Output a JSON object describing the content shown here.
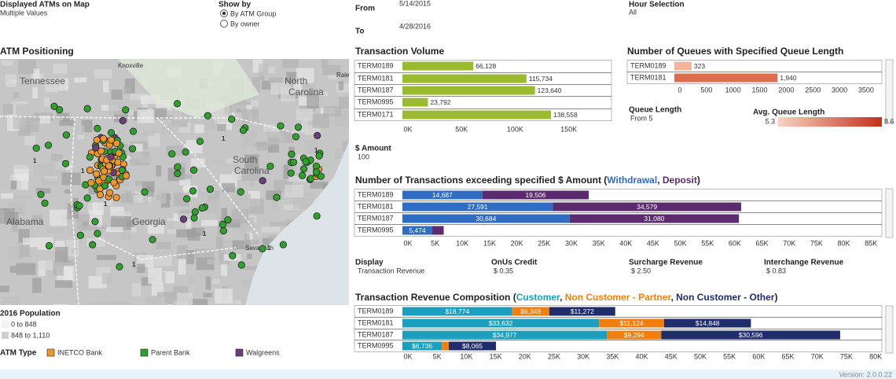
{
  "filters": {
    "displayed_label": "Displayed ATMs on Map",
    "displayed_value": "Multiple Values",
    "show_by_label": "Show by",
    "show_by_options": [
      "By ATM Group",
      "By owner"
    ],
    "from_label": "From",
    "from_value": "5/14/2015",
    "to_label": "To",
    "to_value": "4/28/2016",
    "hour_label": "Hour Selection",
    "hour_value": "All"
  },
  "map": {
    "title": "ATM Positioning",
    "places": [
      "Knoxville",
      "Tennessee",
      "Raleigh",
      "North",
      "Carolina",
      "South",
      "Carolina",
      "Alabama",
      "Georgia",
      "Savannah"
    ],
    "cluster_counts": [
      1,
      1,
      1,
      1,
      1,
      1,
      1,
      1
    ],
    "legend_title": "2016 Population",
    "population_ranges": [
      "0 to 848",
      "848 to 1,110"
    ],
    "atm_type_title": "ATM Type",
    "atm_types": [
      {
        "name": "INETCO Bank",
        "color": "#f0962a"
      },
      {
        "name": "Parent Bank",
        "color": "#2ea02c"
      },
      {
        "name": "Walgreens",
        "color": "#6b3f7a"
      }
    ]
  },
  "amount_filter": {
    "label": "$ Amount",
    "value": "100"
  },
  "queue_filter": {
    "label": "Queue Length",
    "value": "From 5"
  },
  "avg_queue": {
    "label": "Avg. Queue Length",
    "min": 5.3,
    "max": 8.6
  },
  "display": {
    "label": "Display",
    "value": "Transaction Revenue",
    "items": [
      {
        "label": "OnUs Credit",
        "value": "$ 0.35"
      },
      {
        "label": "Surcharge Revenue",
        "value": "$ 2.50"
      },
      {
        "label": "Interchange Revenue",
        "value": "$ 0.83"
      }
    ]
  },
  "version": "Version: 2.0.0.22",
  "chart_data": [
    {
      "type": "bar",
      "orientation": "horizontal",
      "title": "Transaction Volume",
      "categories": [
        "TERM0189",
        "TERM0181",
        "TERM0187",
        "TERM0995",
        "TERM0171"
      ],
      "values": [
        66128,
        115734,
        123640,
        23792,
        138558
      ],
      "value_labels": [
        "66,128",
        "115,734",
        "123,640",
        "23,792",
        "138,558"
      ],
      "color": "#9bbb2f",
      "xlim": [
        0,
        195000
      ],
      "xticks": [
        {
          "value": 0,
          "label": "0K"
        },
        {
          "value": 50000,
          "label": "50K"
        },
        {
          "value": 100000,
          "label": "100K"
        },
        {
          "value": 150000,
          "label": "150K"
        }
      ]
    },
    {
      "type": "bar",
      "orientation": "horizontal",
      "title": "Number of Queues with Specified Queue Length",
      "categories": [
        "TERM0189",
        "TERM0181"
      ],
      "values": [
        323,
        1940
      ],
      "value_labels": [
        "323",
        "1,940"
      ],
      "colors": [
        "#f2b49c",
        "#dd6d4f"
      ],
      "xlim": [
        0,
        3900
      ],
      "xticks": [
        0,
        500,
        1000,
        1500,
        2000,
        2500,
        3000,
        3500
      ]
    },
    {
      "type": "stacked_bar",
      "orientation": "horizontal",
      "title": "Number of Transactions exceeding specified $ Amount (Withdrawal, Deposit)",
      "categories": [
        "TERM0189",
        "TERM0181",
        "TERM0187",
        "TERM0995"
      ],
      "series": [
        {
          "name": "Withdrawal",
          "color": "#2f6cc2",
          "values": [
            14687,
            27591,
            30684,
            5474
          ],
          "value_labels": [
            "14,687",
            "27,591",
            "30,684",
            "5,474"
          ]
        },
        {
          "name": "Deposit",
          "color": "#5c2a6e",
          "values": [
            19506,
            34579,
            31080,
            2100
          ],
          "value_labels": [
            "19,506",
            "34,579",
            "31,080",
            null
          ]
        }
      ],
      "xlim": [
        0,
        88000
      ],
      "xticks": [
        {
          "value": 0,
          "label": "0K"
        },
        {
          "value": 5000,
          "label": "5K"
        },
        {
          "value": 10000,
          "label": "10K"
        },
        {
          "value": 15000,
          "label": "15K"
        },
        {
          "value": 20000,
          "label": "20K"
        },
        {
          "value": 25000,
          "label": "25K"
        },
        {
          "value": 30000,
          "label": "30K"
        },
        {
          "value": 35000,
          "label": "35K"
        },
        {
          "value": 40000,
          "label": "40K"
        },
        {
          "value": 45000,
          "label": "45K"
        },
        {
          "value": 50000,
          "label": "50K"
        },
        {
          "value": 55000,
          "label": "55K"
        },
        {
          "value": 60000,
          "label": "60K"
        },
        {
          "value": 65000,
          "label": "65K"
        },
        {
          "value": 70000,
          "label": "70K"
        },
        {
          "value": 75000,
          "label": "75K"
        },
        {
          "value": 80000,
          "label": "80K"
        },
        {
          "value": 85000,
          "label": "85K"
        }
      ]
    },
    {
      "type": "stacked_bar",
      "orientation": "horizontal",
      "title": "Transaction Revenue Composition (Customer, Non Customer - Partner, Non Customer - Other)",
      "categories": [
        "TERM0189",
        "TERM0181",
        "TERM0187",
        "TERM0995"
      ],
      "series": [
        {
          "name": "Customer",
          "color": "#1a9fbf",
          "values": [
            18774,
            33632,
            34977,
            6736
          ],
          "value_labels": [
            "$18,774",
            "$33,632",
            "$34,977",
            "$6,736"
          ]
        },
        {
          "name": "Non Customer - Partner",
          "color": "#f07f10",
          "values": [
            6349,
            11124,
            9294,
            1200
          ],
          "value_labels": [
            "$6,349",
            "$11,124",
            "$9,294",
            null
          ]
        },
        {
          "name": "Non Customer - Other",
          "color": "#1f2d6b",
          "values": [
            11272,
            14848,
            30596,
            8065
          ],
          "value_labels": [
            "$11,272",
            "$14,848",
            "$30,596",
            "$8,065"
          ]
        }
      ],
      "xlim": [
        0,
        82000
      ],
      "xticks": [
        {
          "value": 0,
          "label": "0K"
        },
        {
          "value": 5000,
          "label": "5K"
        },
        {
          "value": 10000,
          "label": "10K"
        },
        {
          "value": 15000,
          "label": "15K"
        },
        {
          "value": 20000,
          "label": "20K"
        },
        {
          "value": 25000,
          "label": "25K"
        },
        {
          "value": 30000,
          "label": "30K"
        },
        {
          "value": 35000,
          "label": "35K"
        },
        {
          "value": 40000,
          "label": "40K"
        },
        {
          "value": 45000,
          "label": "45K"
        },
        {
          "value": 50000,
          "label": "50K"
        },
        {
          "value": 55000,
          "label": "55K"
        },
        {
          "value": 60000,
          "label": "60K"
        },
        {
          "value": 65000,
          "label": "65K"
        },
        {
          "value": 70000,
          "label": "70K"
        },
        {
          "value": 75000,
          "label": "75K"
        },
        {
          "value": 80000,
          "label": "80K"
        }
      ]
    }
  ]
}
